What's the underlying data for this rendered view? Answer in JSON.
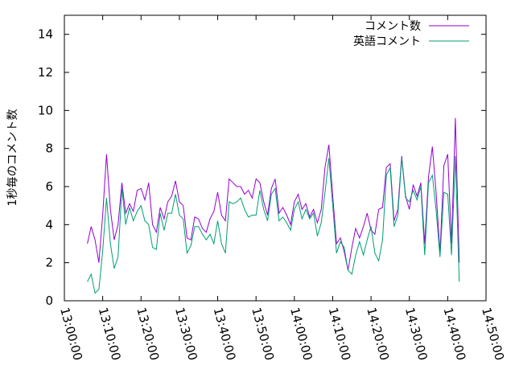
{
  "chart_data": {
    "type": "line",
    "title": "",
    "xlabel": "",
    "ylabel": "1秒毎のコメント数",
    "xlim": [
      "13:00:00",
      "14:50:00"
    ],
    "ylim": [
      0,
      15
    ],
    "x_ticks": [
      "13:00:00",
      "13:10:00",
      "13:20:00",
      "13:30:00",
      "13:40:00",
      "13:50:00",
      "14:00:00",
      "14:10:00",
      "14:20:00",
      "14:30:00",
      "14:40:00",
      "14:50:00"
    ],
    "y_ticks": [
      "0",
      "2",
      "4",
      "6",
      "8",
      "10",
      "12",
      "14"
    ],
    "grid": false,
    "legend_position": "top-right",
    "x": [
      "13:06:00",
      "13:07:00",
      "13:08:00",
      "13:09:00",
      "13:10:00",
      "13:11:00",
      "13:12:00",
      "13:13:00",
      "13:14:00",
      "13:15:00",
      "13:16:00",
      "13:17:00",
      "13:18:00",
      "13:19:00",
      "13:20:00",
      "13:21:00",
      "13:22:00",
      "13:23:00",
      "13:24:00",
      "13:25:00",
      "13:26:00",
      "13:27:00",
      "13:28:00",
      "13:29:00",
      "13:30:00",
      "13:31:00",
      "13:32:00",
      "13:33:00",
      "13:34:00",
      "13:35:00",
      "13:36:00",
      "13:37:00",
      "13:38:00",
      "13:39:00",
      "13:40:00",
      "13:41:00",
      "13:42:00",
      "13:43:00",
      "13:44:00",
      "13:45:00",
      "13:46:00",
      "13:47:00",
      "13:48:00",
      "13:49:00",
      "13:50:00",
      "13:51:00",
      "13:52:00",
      "13:53:00",
      "13:54:00",
      "13:55:00",
      "13:56:00",
      "13:57:00",
      "13:58:00",
      "13:59:00",
      "14:00:00",
      "14:01:00",
      "14:02:00",
      "14:03:00",
      "14:04:00",
      "14:05:00",
      "14:06:00",
      "14:07:00",
      "14:08:00",
      "14:09:00",
      "14:10:00",
      "14:11:00",
      "14:12:00",
      "14:13:00",
      "14:14:00",
      "14:15:00",
      "14:16:00",
      "14:17:00",
      "14:18:00",
      "14:19:00",
      "14:20:00",
      "14:21:00",
      "14:22:00",
      "14:23:00",
      "14:24:00",
      "14:25:00",
      "14:26:00",
      "14:27:00",
      "14:28:00",
      "14:29:00",
      "14:30:00",
      "14:31:00",
      "14:32:00",
      "14:33:00",
      "14:34:00",
      "14:35:00",
      "14:36:00",
      "14:37:00",
      "14:38:00",
      "14:39:00",
      "14:40:00",
      "14:41:00",
      "14:42:00",
      "14:43:00"
    ],
    "series": [
      {
        "name": "コメント数",
        "color": "#9400d3",
        "values": [
          3.0,
          3.9,
          3.2,
          2.0,
          4.5,
          7.7,
          4.8,
          3.2,
          4.0,
          6.2,
          4.6,
          5.1,
          4.7,
          5.8,
          5.9,
          5.3,
          6.2,
          4.0,
          3.6,
          4.9,
          4.3,
          5.2,
          5.5,
          6.3,
          5.2,
          5.0,
          3.3,
          3.2,
          4.4,
          4.3,
          3.8,
          3.6,
          4.3,
          4.7,
          5.7,
          4.5,
          4.2,
          6.4,
          6.2,
          6.0,
          6.0,
          5.6,
          5.8,
          5.4,
          6.4,
          6.2,
          5.2,
          4.5,
          5.9,
          6.4,
          4.6,
          4.9,
          4.5,
          4.0,
          5.2,
          5.6,
          4.8,
          5.1,
          4.4,
          4.8,
          4.1,
          4.8,
          7.0,
          8.2,
          5.5,
          3.0,
          3.3,
          2.6,
          1.6,
          2.8,
          3.8,
          3.3,
          3.9,
          4.6,
          3.7,
          3.5,
          4.8,
          4.9,
          7.0,
          7.2,
          4.2,
          4.8,
          7.6,
          5.5,
          4.8,
          6.1,
          5.5,
          6.2,
          3.0,
          6.5,
          8.1,
          5.6,
          2.5,
          7.1,
          7.7,
          3.0,
          9.6,
          2.0
        ]
      },
      {
        "name": "英語コメント",
        "color": "#009e73",
        "values": [
          1.0,
          1.4,
          0.4,
          0.6,
          2.6,
          5.4,
          3.0,
          1.7,
          2.3,
          5.9,
          4.0,
          4.9,
          4.2,
          4.7,
          5.0,
          4.2,
          4.0,
          2.8,
          2.7,
          4.6,
          3.7,
          4.6,
          4.6,
          5.6,
          4.5,
          4.3,
          2.5,
          2.9,
          3.9,
          3.9,
          3.5,
          3.2,
          3.5,
          3.0,
          4.2,
          3.0,
          2.5,
          5.2,
          5.1,
          5.2,
          5.4,
          4.8,
          4.4,
          4.5,
          4.5,
          5.8,
          4.8,
          4.2,
          5.6,
          5.9,
          4.2,
          4.4,
          4.1,
          3.7,
          4.8,
          5.2,
          4.3,
          4.8,
          4.3,
          4.6,
          3.4,
          4.1,
          5.7,
          7.5,
          5.0,
          2.5,
          3.1,
          2.8,
          1.6,
          1.4,
          2.4,
          3.1,
          2.4,
          3.2,
          3.9,
          2.5,
          2.1,
          3.2,
          6.6,
          7.0,
          3.9,
          4.5,
          7.5,
          5.4,
          5.2,
          5.8,
          5.3,
          6.0,
          2.4,
          6.2,
          6.6,
          4.7,
          2.3,
          5.7,
          5.6,
          2.4,
          7.6,
          1.0
        ]
      }
    ]
  }
}
